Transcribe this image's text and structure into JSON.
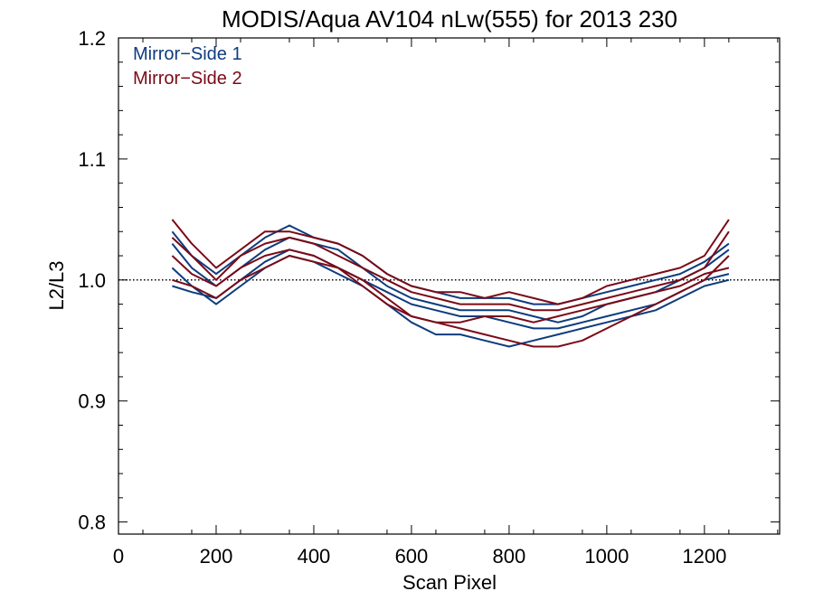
{
  "chart_data": {
    "type": "line",
    "title": "MODIS/Aqua AV104 nLw(555) for 2013 230",
    "xlabel": "Scan Pixel",
    "ylabel": "L2/L3",
    "xlim": [
      0,
      1354
    ],
    "ylim": [
      0.79,
      1.2
    ],
    "xticks": [
      0,
      200,
      400,
      600,
      800,
      1000,
      1200
    ],
    "xtick_labels": [
      "0",
      "200",
      "400",
      "600",
      "800",
      "1000",
      "1200"
    ],
    "yticks": [
      0.8,
      0.9,
      1.0,
      1.1,
      1.2
    ],
    "ytick_labels": [
      "0.8",
      "0.9",
      "1.0",
      "1.1",
      "1.2"
    ],
    "reference_line": 1.0,
    "legend_position": "top-left",
    "legend": [
      {
        "label": "Mirror−Side 1",
        "color": "#0d3c7e"
      },
      {
        "label": "Mirror−Side 2",
        "color": "#7a0a17"
      }
    ],
    "grid": false,
    "x": [
      110,
      150,
      200,
      250,
      300,
      350,
      400,
      450,
      500,
      550,
      600,
      650,
      700,
      750,
      800,
      850,
      900,
      950,
      1000,
      1050,
      1100,
      1150,
      1200,
      1250
    ],
    "series": [
      {
        "mirror_side": 1,
        "values": [
          1.04,
          1.02,
          1.005,
          1.02,
          1.035,
          1.045,
          1.035,
          1.03,
          1.02,
          1.005,
          0.995,
          0.99,
          0.985,
          0.985,
          0.985,
          0.98,
          0.98,
          0.985,
          0.99,
          0.995,
          1.0,
          1.005,
          1.015,
          1.03
        ]
      },
      {
        "mirror_side": 1,
        "values": [
          1.03,
          1.01,
          0.995,
          1.01,
          1.025,
          1.035,
          1.03,
          1.025,
          1.01,
          0.995,
          0.985,
          0.98,
          0.975,
          0.975,
          0.975,
          0.97,
          0.965,
          0.97,
          0.98,
          0.985,
          0.99,
          1.0,
          1.01,
          1.025
        ]
      },
      {
        "mirror_side": 1,
        "values": [
          1.01,
          0.995,
          0.98,
          0.995,
          1.01,
          1.02,
          1.015,
          1.005,
          0.995,
          0.98,
          0.965,
          0.955,
          0.955,
          0.95,
          0.945,
          0.95,
          0.955,
          0.96,
          0.965,
          0.97,
          0.975,
          0.985,
          0.995,
          1.0
        ]
      },
      {
        "mirror_side": 1,
        "values": [
          0.995,
          0.99,
          0.985,
          1.0,
          1.015,
          1.025,
          1.02,
          1.01,
          1.0,
          0.99,
          0.98,
          0.975,
          0.97,
          0.97,
          0.965,
          0.96,
          0.96,
          0.965,
          0.97,
          0.975,
          0.98,
          0.99,
          1.0,
          1.005
        ]
      },
      {
        "mirror_side": 2,
        "values": [
          1.05,
          1.03,
          1.01,
          1.025,
          1.04,
          1.04,
          1.035,
          1.03,
          1.02,
          1.005,
          0.995,
          0.99,
          0.99,
          0.985,
          0.99,
          0.985,
          0.98,
          0.985,
          0.995,
          1.0,
          1.005,
          1.01,
          1.02,
          1.05
        ]
      },
      {
        "mirror_side": 2,
        "values": [
          1.02,
          1.005,
          0.995,
          1.01,
          1.02,
          1.025,
          1.02,
          1.01,
          1.0,
          0.985,
          0.97,
          0.965,
          0.96,
          0.955,
          0.95,
          0.945,
          0.945,
          0.95,
          0.96,
          0.97,
          0.98,
          0.99,
          1.0,
          1.02
        ]
      },
      {
        "mirror_side": 2,
        "values": [
          1.0,
          0.995,
          0.985,
          1.0,
          1.01,
          1.02,
          1.015,
          1.01,
          0.995,
          0.98,
          0.97,
          0.965,
          0.965,
          0.97,
          0.97,
          0.965,
          0.97,
          0.975,
          0.98,
          0.985,
          0.99,
          0.995,
          1.005,
          1.01
        ]
      },
      {
        "mirror_side": 2,
        "values": [
          1.035,
          1.02,
          1.0,
          1.02,
          1.03,
          1.035,
          1.03,
          1.02,
          1.01,
          1.0,
          0.99,
          0.985,
          0.98,
          0.98,
          0.98,
          0.975,
          0.975,
          0.98,
          0.985,
          0.99,
          0.995,
          1.0,
          1.01,
          1.04
        ]
      }
    ]
  }
}
